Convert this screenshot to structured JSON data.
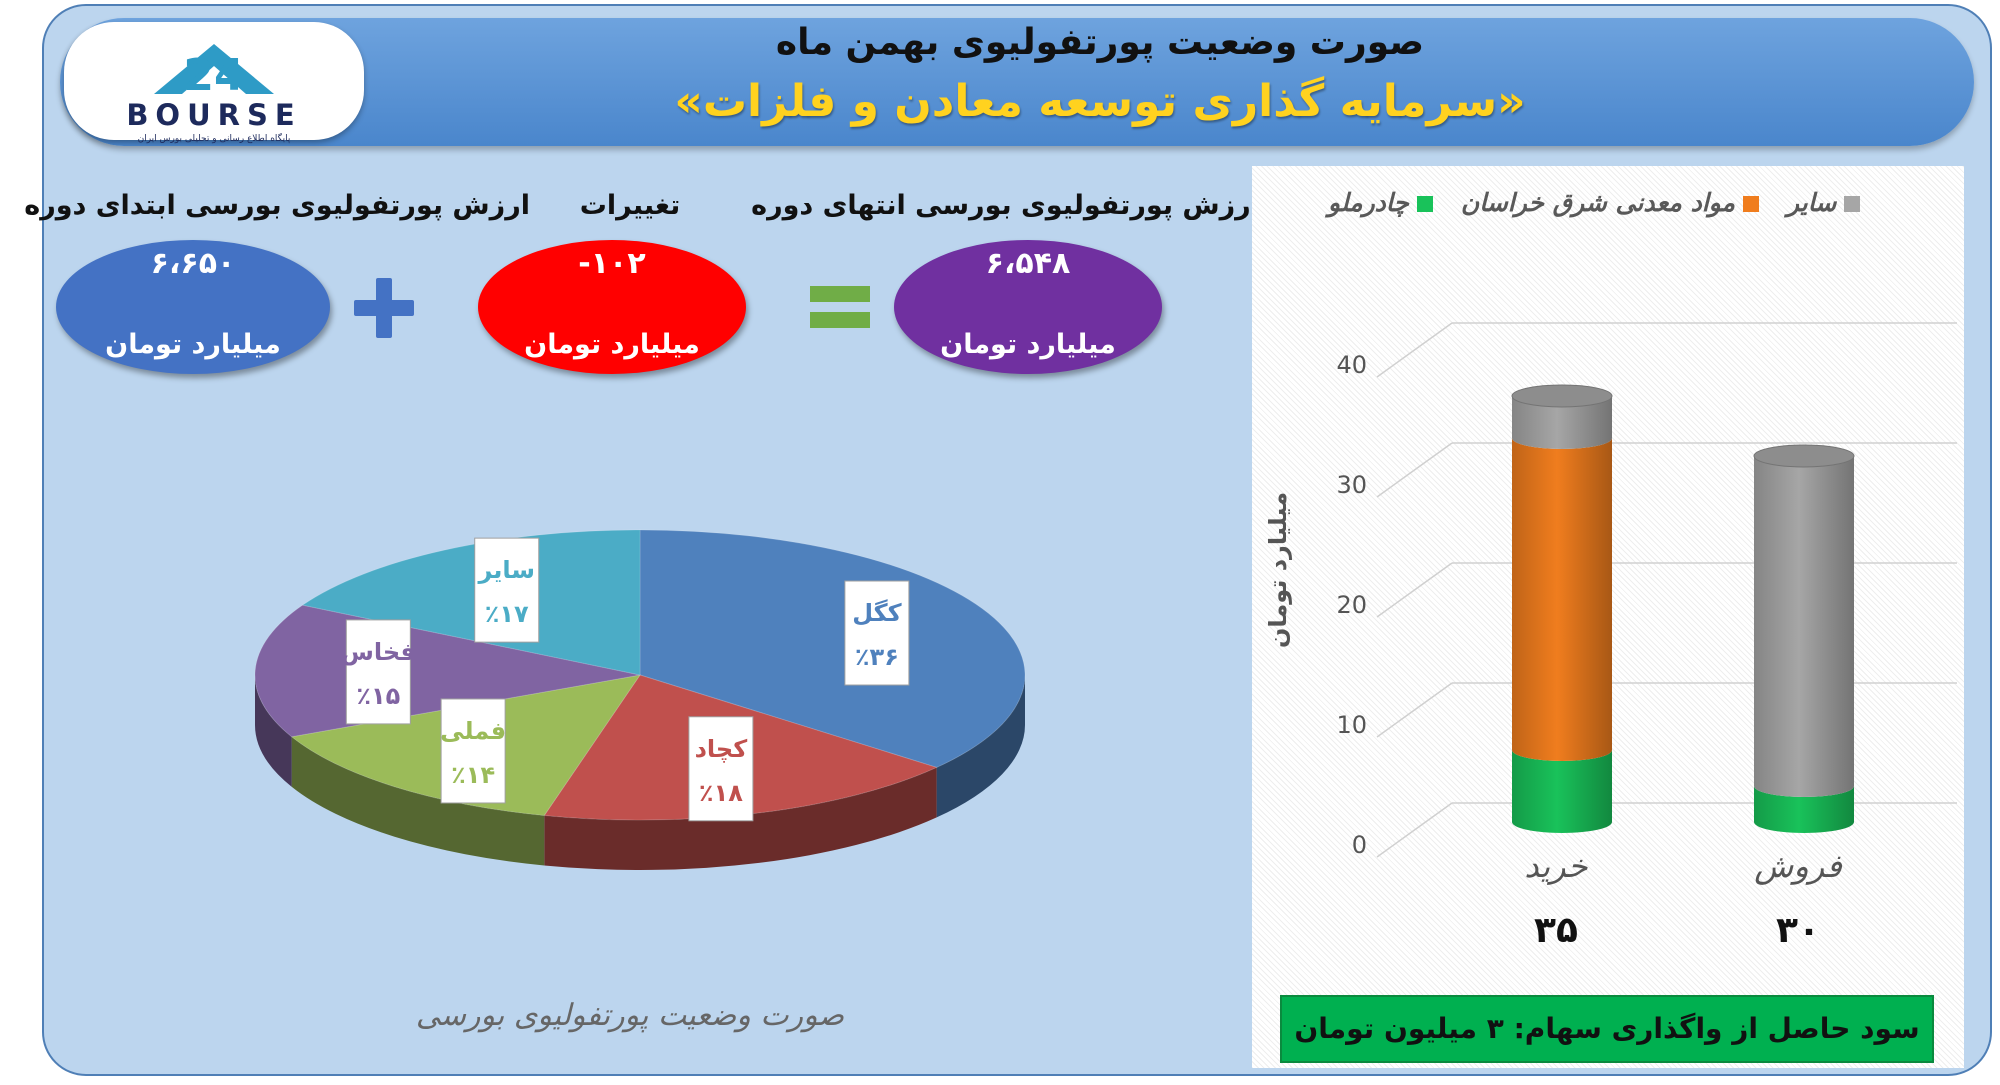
{
  "header": {
    "title": "صورت وضعیت پورتفولیوی بهمن ماه",
    "subtitle": "«سرمایه گذاری توسعه معادن و فلزات»"
  },
  "logo": {
    "text": "BOURSE",
    "subtitle": "پایگاه اطلاع رسانی و تحلیلی بورس ایران",
    "number": "24"
  },
  "summary": {
    "start": {
      "label": "ارزش پورتفولیوی بورسی ابتدای دوره",
      "value": "۶،۶۵۰",
      "unit": "میلیارد تومان"
    },
    "change": {
      "label": "تغییرات",
      "value": "-۱۰۲",
      "unit": "میلیارد تومان"
    },
    "end": {
      "label": "ارزش پورتفولیوی بورسی انتهای دوره",
      "value": "۶،۵۴۸",
      "unit": "میلیارد تومان"
    },
    "plus_sign": "+",
    "equals_sign": "=",
    "colors": {
      "start": "#4472c4",
      "change": "#ff0000",
      "end": "#7030a0",
      "plus": "#4472c4",
      "equals": "#70ad47"
    }
  },
  "pie_caption": "صورت وضعیت پورتفولیوی بورسی",
  "profit_banner": "سود حاصل از واگذاری سهام: ۳ میلیون تومان",
  "chart_data": [
    {
      "type": "pie",
      "title": "صورت وضعیت پورتفولیوی بورسی",
      "slices": [
        {
          "name": "کگل",
          "value": 36,
          "label": "٪۳۶",
          "color": "#4f81bd"
        },
        {
          "name": "کچاد",
          "value": 18,
          "label": "٪۱۸",
          "color": "#c0504d"
        },
        {
          "name": "فملی",
          "value": 14,
          "label": "٪۱۴",
          "color": "#9bbb59"
        },
        {
          "name": "فخاس",
          "value": 15,
          "label": "٪۱۵",
          "color": "#8064a2"
        },
        {
          "name": "سایر",
          "value": 17,
          "label": "٪۱۷",
          "color": "#4bacc6"
        }
      ]
    },
    {
      "type": "bar",
      "stacked": true,
      "ylabel": "میلیارد تومان",
      "ylim": [
        0,
        40
      ],
      "yticks": [
        "0",
        "10",
        "20",
        "30",
        "40"
      ],
      "grid": true,
      "legend_position": "top",
      "categories": [
        "خرید",
        "فروش"
      ],
      "totals": [
        "۳۵",
        "۳۰"
      ],
      "series": [
        {
          "name": "چادرملو",
          "values": [
            6,
            3
          ],
          "color": "#19c25a"
        },
        {
          "name": "مواد معدنی شرق خراسان",
          "values": [
            26,
            0
          ],
          "color": "#f07d1e"
        },
        {
          "name": "سایر",
          "values": [
            3.5,
            27.5
          ],
          "color": "#a6a6a6"
        }
      ]
    }
  ]
}
